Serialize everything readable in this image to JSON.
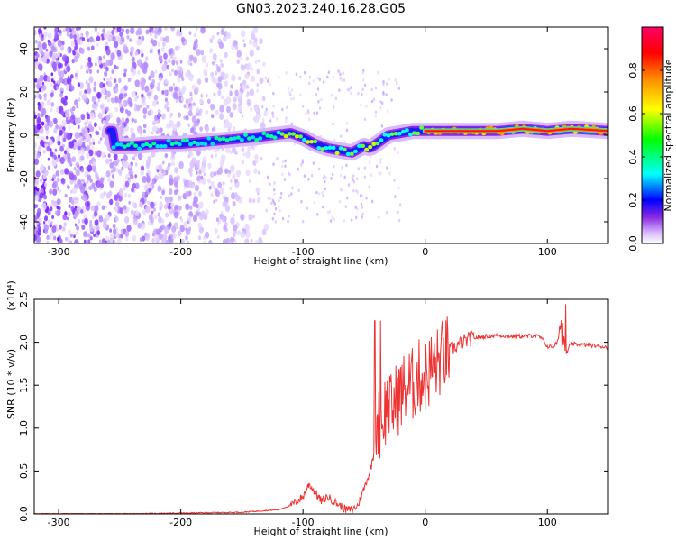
{
  "figure_title": "GN03.2023.240.16.28.G05",
  "chart_data": [
    {
      "type": "heatmap",
      "title": "GN03.2023.240.16.28.G05",
      "xlabel": "Height of straight line (km)",
      "ylabel": "Frequency (Hz)",
      "xlim": [
        -320,
        150
      ],
      "ylim": [
        -50,
        50
      ],
      "x_ticks": [
        -300,
        -200,
        -100,
        0,
        100
      ],
      "y_ticks": [
        -40,
        -20,
        0,
        20,
        40
      ],
      "colorbar": {
        "label": "Normalized spectral amplitude",
        "range": [
          0,
          1
        ],
        "ticks": [
          "0.0",
          "0.2",
          "0.4",
          "0.6",
          "0.8"
        ],
        "colors": [
          "#ffffff",
          "#cc99ff",
          "#6600ff",
          "#0000ff",
          "#00ffff",
          "#00ff00",
          "#ffff00",
          "#ff8800",
          "#ff0000",
          "#ff0066"
        ]
      },
      "ridge": {
        "description": "dominant frequency track",
        "points": [
          [
            -255,
            -5
          ],
          [
            -240,
            -5
          ],
          [
            -220,
            -4
          ],
          [
            -200,
            -4
          ],
          [
            -180,
            -3
          ],
          [
            -160,
            -2
          ],
          [
            -140,
            -1
          ],
          [
            -125,
            0
          ],
          [
            -110,
            1
          ],
          [
            -100,
            -1
          ],
          [
            -90,
            -4
          ],
          [
            -80,
            -6
          ],
          [
            -70,
            -7
          ],
          [
            -60,
            -8
          ],
          [
            -50,
            -5
          ],
          [
            -45,
            -6
          ],
          [
            -40,
            -4
          ],
          [
            -30,
            0
          ],
          [
            -20,
            1
          ],
          [
            -10,
            2
          ],
          [
            0,
            2
          ],
          [
            20,
            2
          ],
          [
            40,
            2
          ],
          [
            60,
            2
          ],
          [
            80,
            3
          ],
          [
            100,
            2
          ],
          [
            120,
            3
          ],
          [
            150,
            2
          ]
        ]
      }
    },
    {
      "type": "line",
      "xlabel": "Height of straight line (km)",
      "ylabel": "SNR (10 * v/v)",
      "y_multiplier": "(x10⁴)",
      "xlim": [
        -320,
        150
      ],
      "ylim": [
        0,
        2.5
      ],
      "x_ticks": [
        -300,
        -200,
        -100,
        0,
        100
      ],
      "y_ticks": [
        "0.0",
        "0.5",
        "1.0",
        "1.5",
        "2.0",
        "2.5"
      ],
      "color": "#ee3333",
      "series": [
        {
          "x": [
            -320,
            -250,
            -200,
            -150,
            -120,
            -110,
            -100,
            -95,
            -90,
            -85,
            -80,
            -75,
            -70,
            -65,
            -60,
            -55,
            -50,
            -45,
            -42,
            -40,
            -38,
            -35,
            -33,
            -30,
            -28,
            -25,
            -20,
            -15,
            -10,
            -5,
            0,
            5,
            10,
            15,
            20,
            25,
            30,
            40,
            50,
            60,
            70,
            80,
            90,
            95,
            100,
            105,
            108,
            110,
            112,
            115,
            118,
            120,
            130,
            140,
            150
          ],
          "y": [
            0.0,
            0.0,
            0.01,
            0.02,
            0.05,
            0.1,
            0.2,
            0.35,
            0.25,
            0.15,
            0.2,
            0.15,
            0.1,
            0.05,
            0.05,
            0.1,
            0.3,
            0.5,
            0.7,
            0.9,
            1.1,
            1.0,
            1.2,
            1.3,
            1.2,
            1.3,
            1.4,
            1.5,
            1.5,
            1.6,
            1.6,
            1.7,
            1.75,
            1.85,
            1.9,
            1.95,
            2.0,
            2.05,
            2.07,
            2.08,
            2.07,
            2.07,
            2.08,
            2.05,
            1.95,
            1.95,
            2.0,
            2.1,
            2.3,
            1.85,
            1.95,
            1.98,
            1.97,
            1.96,
            1.94
          ]
        }
      ]
    }
  ]
}
